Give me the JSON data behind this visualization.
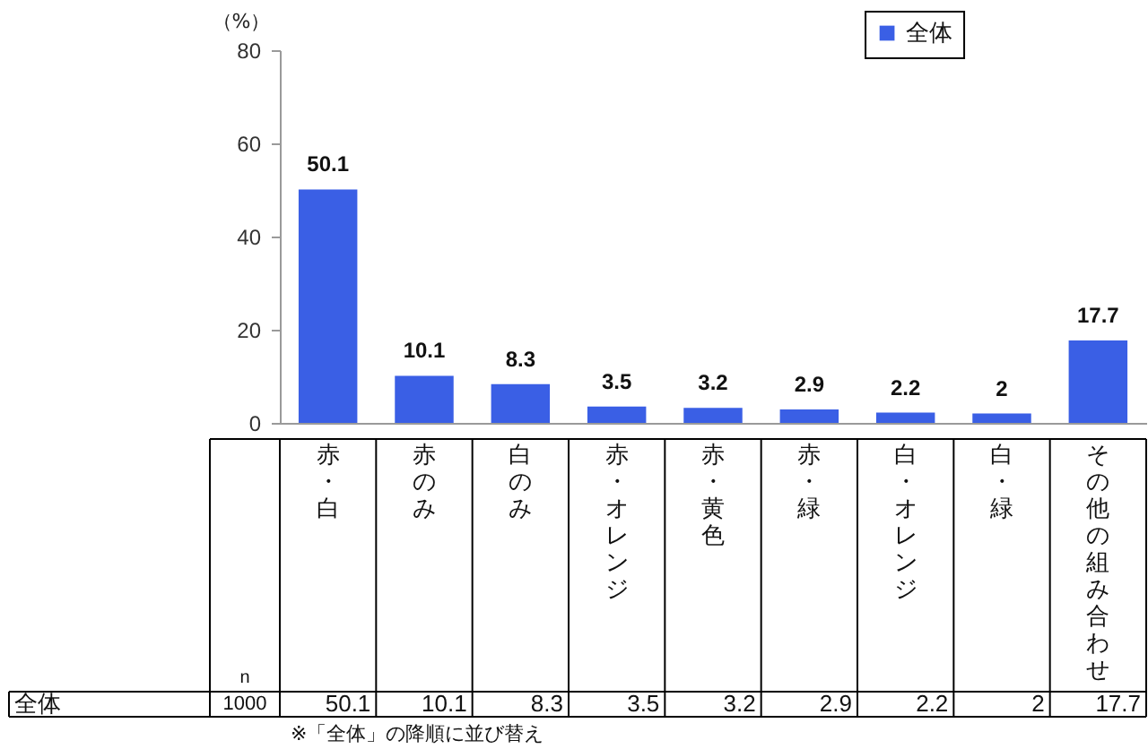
{
  "chart_data": {
    "type": "bar",
    "categories": [
      "赤・白",
      "赤のみ",
      "白のみ",
      "赤・オレンジ",
      "赤・黄色",
      "赤・緑",
      "白・オレンジ",
      "白・緑",
      "その他の組み合わせ"
    ],
    "series": [
      {
        "name": "全体",
        "color": "#3a5fe5",
        "values": [
          50.1,
          10.1,
          8.3,
          3.5,
          3.2,
          2.9,
          2.2,
          2,
          17.7
        ]
      }
    ],
    "ylabel": "（%）",
    "ylim": [
      0,
      80
    ],
    "yticks": [
      0,
      20,
      40,
      60,
      80
    ],
    "data_labels": true,
    "legend": "top right",
    "annotations": [
      "n",
      "1000",
      "50.1",
      "10.1",
      "8.3",
      "3.5",
      "3.2",
      "2.9",
      "2.2",
      "2",
      "17.7",
      "※「全体」の降順に並び替え"
    ]
  }
}
